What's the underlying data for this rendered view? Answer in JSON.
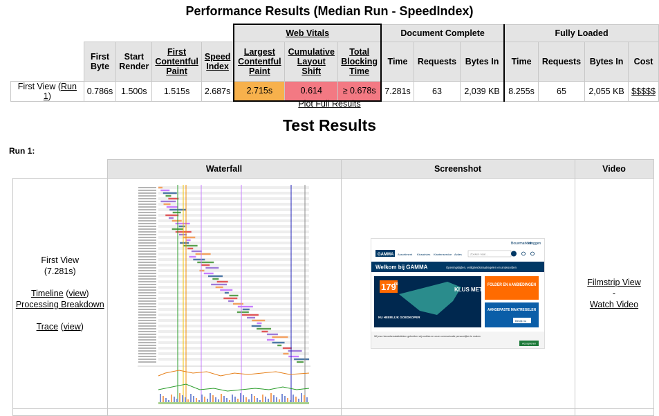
{
  "perf_title": "Performance Results (Median Run - SpeedIndex)",
  "groups": {
    "web_vitals": "Web Vitals",
    "document_complete": "Document Complete",
    "fully_loaded": "Fully Loaded"
  },
  "headers": {
    "first_byte": "First Byte",
    "start_render": "Start Render",
    "fcp": "First Contentful Paint",
    "speed_index": "Speed Index",
    "lcp": "Largest Contentful Paint",
    "cls": "Cumulative Layout Shift",
    "tbt": "Total Blocking Time",
    "dc_time": "Time",
    "dc_requests": "Requests",
    "dc_bytes": "Bytes In",
    "fl_time": "Time",
    "fl_requests": "Requests",
    "fl_bytes": "Bytes In",
    "fl_cost": "Cost"
  },
  "row": {
    "label_prefix": "First View (",
    "run_link": "Run 1",
    "label_suffix": ")",
    "first_byte": "0.786s",
    "start_render": "1.500s",
    "fcp": "1.515s",
    "speed_index": "2.687s",
    "lcp": "2.715s",
    "cls": "0.614",
    "tbt": "≥ 0.678s",
    "dc_time": "7.281s",
    "dc_requests": "63",
    "dc_bytes": "2,039 KB",
    "fl_time": "8.255s",
    "fl_requests": "65",
    "fl_bytes": "2,055 KB",
    "fl_cost": "$$$$$"
  },
  "colors": {
    "lcp_bg": "#f7b14c",
    "cls_bg": "#f37983",
    "tbt_bg": "#f37983"
  },
  "plot_full_results": "Plot Full Results",
  "test_title": "Test Results",
  "run_label": "Run 1:",
  "results_headers": {
    "waterfall": "Waterfall",
    "screenshot": "Screenshot",
    "video": "Video"
  },
  "side": {
    "first_view": "First View",
    "time": "(7.281s)",
    "timeline": "Timeline",
    "view": "view",
    "processing": "Processing Breakdown",
    "trace": "Trace"
  },
  "video": {
    "filmstrip": "Filmstrip View",
    "dash": "-",
    "watch": "Watch Video"
  },
  "screenshot": {
    "logo": "GAMMA",
    "nav": [
      "Assortiment",
      "Klusadvies",
      "Klantenservice",
      "Acties"
    ],
    "search_placeholder": "Zoeken naar...",
    "topbar": [
      "Bouwmarkten",
      "Inloggen"
    ],
    "welcome": "Welkom bij GAMMA",
    "welcome_sub": "Openingstijden, veiligheidsmaatregelen en antwoorden",
    "price": "179",
    "price_cents": "00",
    "promo1": "KLUS MET KNUS",
    "promo2": "NU HEERLIJK GOEDKOPER",
    "folder": "FOLDER EN AANBIEDINGEN",
    "aangepast": "AANGEPASTE MAATREGELEN",
    "bekijk": "Bekijk nu",
    "cookie": "Wij voor bezoekersstatistieken gebruiken wij cookies en onze communicatie persoonlijker te maken",
    "accept": "Accepteren"
  }
}
